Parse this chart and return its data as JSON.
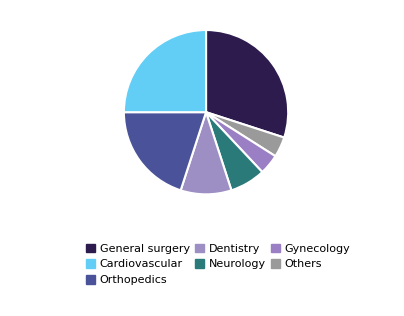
{
  "labels": [
    "General surgery",
    "Cardiovascular",
    "Orthopedics",
    "Dentistry",
    "Neurology",
    "Gynecology",
    "Others"
  ],
  "values": [
    30,
    25,
    20,
    10,
    7,
    4,
    4
  ],
  "colors": [
    "#2d1b4e",
    "#63cef5",
    "#4a5299",
    "#9d8fc4",
    "#2a7a7a",
    "#9b7fc4",
    "#9a9a9a"
  ],
  "pie_order_labels": [
    "General surgery",
    "Others",
    "Gynecology",
    "Neurology",
    "Dentistry",
    "Orthopedics",
    "Cardiovascular"
  ],
  "pie_order_values": [
    30,
    4,
    4,
    7,
    10,
    20,
    25
  ],
  "pie_order_colors": [
    "#2d1b4e",
    "#9a9a9a",
    "#9b7fc4",
    "#2a7a7a",
    "#9d8fc4",
    "#4a5299",
    "#63cef5"
  ],
  "startangle": 90,
  "background_color": "#ffffff",
  "legend_fontsize": 8.0,
  "figsize": [
    4.04,
    3.16
  ],
  "dpi": 100
}
